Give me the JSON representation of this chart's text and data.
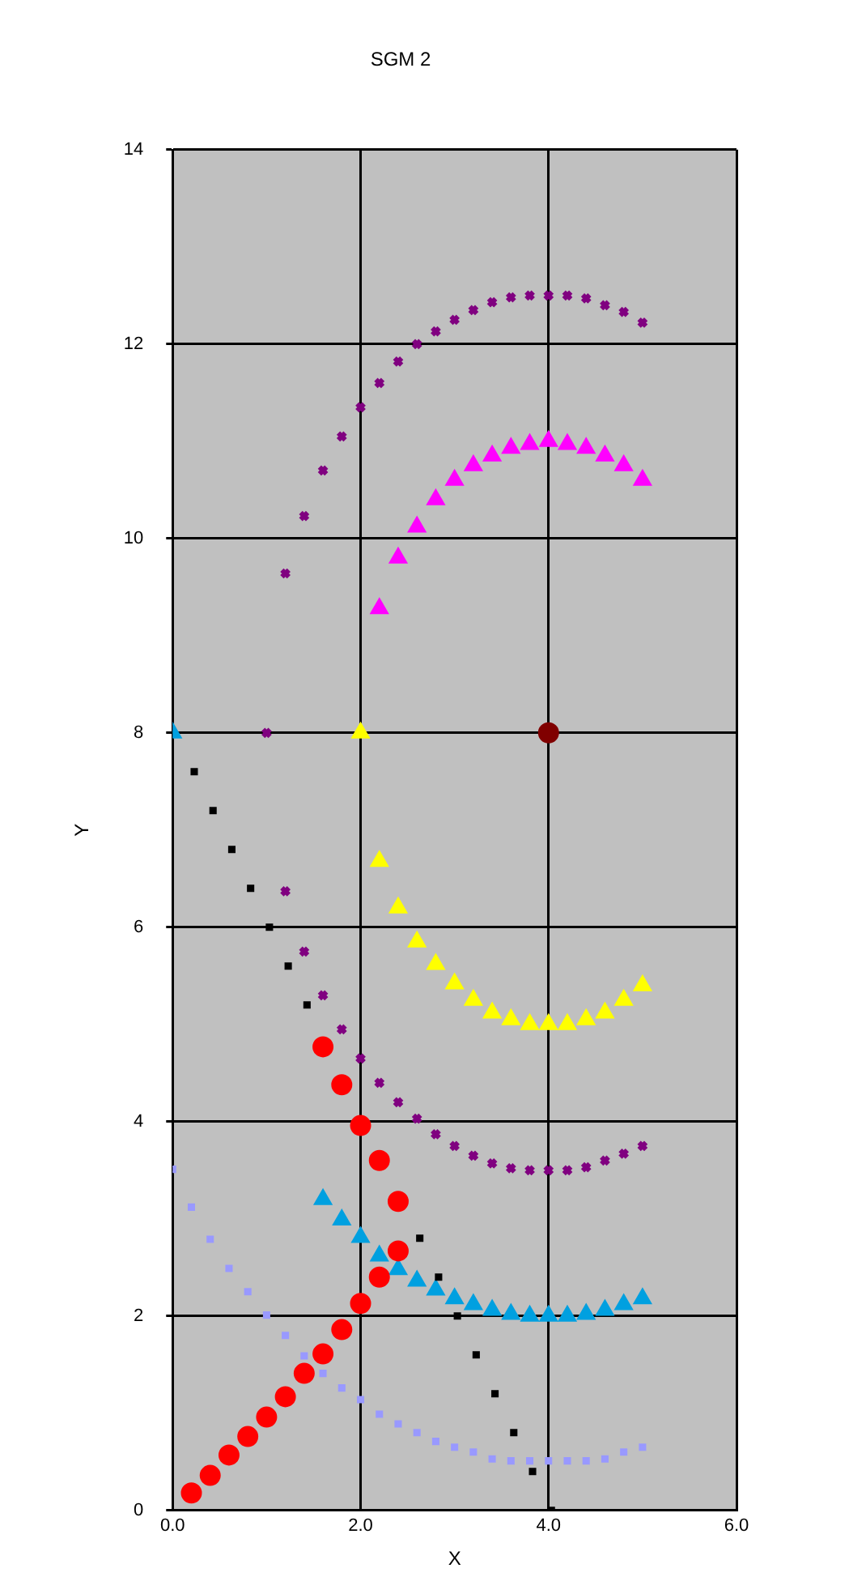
{
  "chart_data": {
    "type": "scatter",
    "title": "SGM 2",
    "xlabel": "X",
    "ylabel": "Y",
    "xlim": [
      0,
      6
    ],
    "ylim": [
      0,
      14
    ],
    "xticks": [
      {
        "value": 0,
        "label": "0.0"
      },
      {
        "value": 2,
        "label": "2.0"
      },
      {
        "value": 4,
        "label": "4.0"
      },
      {
        "value": 6,
        "label": "6.0"
      }
    ],
    "yticks": [
      0,
      2,
      4,
      6,
      8,
      10,
      12,
      14
    ],
    "grid": true,
    "legend": false,
    "series": [
      {
        "color": "#800080",
        "marker": "cross",
        "x": [
          1.0,
          1.2,
          1.4,
          1.6,
          1.8,
          2.0,
          2.2,
          2.4,
          2.6,
          2.8,
          3.0,
          3.2,
          3.4,
          3.6,
          3.8,
          4.0,
          4.2,
          4.4,
          4.6,
          4.8,
          5.0,
          1.2,
          1.4,
          1.6,
          1.8,
          2.0,
          2.2,
          2.4,
          2.6,
          2.8,
          3.0,
          3.2,
          3.4,
          3.6,
          3.8,
          4.0,
          4.2,
          4.4,
          4.6,
          4.8,
          5.0
        ],
        "values": [
          8.0,
          6.37,
          5.75,
          5.3,
          4.95,
          4.65,
          4.4,
          4.2,
          4.03,
          3.87,
          3.75,
          3.65,
          3.57,
          3.52,
          3.5,
          3.5,
          3.5,
          3.53,
          3.6,
          3.67,
          3.75,
          9.64,
          10.23,
          10.7,
          11.05,
          11.35,
          11.6,
          11.82,
          12.0,
          12.13,
          12.25,
          12.35,
          12.43,
          12.48,
          12.5,
          12.5,
          12.5,
          12.47,
          12.4,
          12.33,
          12.22
        ]
      },
      {
        "color": "#ffff00",
        "marker": "triangle",
        "x": [
          2.0,
          2.2,
          2.4,
          2.6,
          2.8,
          3.0,
          3.2,
          3.4,
          3.6,
          3.8,
          4.0,
          4.2,
          4.4,
          4.6,
          4.8,
          5.0
        ],
        "values": [
          8.0,
          6.68,
          6.2,
          5.85,
          5.62,
          5.42,
          5.25,
          5.12,
          5.05,
          5.0,
          5.0,
          5.0,
          5.05,
          5.12,
          5.25,
          5.4
        ]
      },
      {
        "color": "#ff00ff",
        "marker": "triangle",
        "x": [
          2.2,
          2.4,
          2.6,
          2.8,
          3.0,
          3.2,
          3.4,
          3.6,
          3.8,
          4.0,
          4.2,
          4.4,
          4.6,
          4.8,
          5.0
        ],
        "values": [
          9.28,
          9.8,
          10.12,
          10.4,
          10.6,
          10.75,
          10.85,
          10.93,
          10.97,
          11.0,
          10.97,
          10.93,
          10.85,
          10.75,
          10.6
        ]
      },
      {
        "color": "#800000",
        "marker": "circle",
        "x": [
          4.0
        ],
        "values": [
          8.0
        ]
      },
      {
        "color": "#000000",
        "marker": "square",
        "x": [
          0.23,
          0.43,
          0.63,
          0.83,
          1.03,
          1.23,
          1.43,
          2.63,
          2.83,
          3.03,
          3.23,
          3.43,
          3.63,
          3.83,
          4.03
        ],
        "values": [
          7.6,
          7.2,
          6.8,
          6.4,
          6.0,
          5.6,
          5.2,
          2.8,
          2.4,
          2.0,
          1.6,
          1.2,
          0.8,
          0.4,
          0.0
        ]
      },
      {
        "color": "#ff0000",
        "marker": "circle",
        "x": [
          0.2,
          0.4,
          0.6,
          0.8,
          1.0,
          1.2,
          1.4,
          1.6,
          1.8,
          2.0,
          2.2,
          2.4,
          2.4,
          2.2,
          2.0,
          1.8,
          1.6
        ],
        "values": [
          0.18,
          0.36,
          0.57,
          0.76,
          0.96,
          1.17,
          1.41,
          1.61,
          1.86,
          2.13,
          2.4,
          2.67,
          3.18,
          3.6,
          3.96,
          4.38,
          4.77
        ]
      },
      {
        "color": "#00a0e0",
        "marker": "triangle",
        "x": [
          0.0,
          1.6,
          1.8,
          2.0,
          2.2,
          2.4,
          2.6,
          2.8,
          3.0,
          3.2,
          3.4,
          3.6,
          3.8,
          4.0,
          4.2,
          4.4,
          4.6,
          4.8,
          5.0
        ],
        "values": [
          8.0,
          3.2,
          2.99,
          2.81,
          2.62,
          2.48,
          2.36,
          2.27,
          2.18,
          2.12,
          2.06,
          2.02,
          2.0,
          2.0,
          2.0,
          2.02,
          2.06,
          2.12,
          2.18
        ]
      },
      {
        "color": "#9999ff",
        "marker": "square",
        "x": [
          0.0,
          0.2,
          0.4,
          0.6,
          0.8,
          1.0,
          1.2,
          1.4,
          1.6,
          1.8,
          2.0,
          2.2,
          2.4,
          2.6,
          2.8,
          3.0,
          3.2,
          3.4,
          3.6,
          3.8,
          4.0,
          4.2,
          4.4,
          4.6,
          4.8,
          5.0
        ],
        "values": [
          3.51,
          3.12,
          2.79,
          2.49,
          2.25,
          2.01,
          1.8,
          1.59,
          1.41,
          1.26,
          1.14,
          0.99,
          0.89,
          0.8,
          0.71,
          0.65,
          0.6,
          0.53,
          0.51,
          0.51,
          0.51,
          0.51,
          0.51,
          0.53,
          0.6,
          0.65
        ]
      }
    ]
  }
}
